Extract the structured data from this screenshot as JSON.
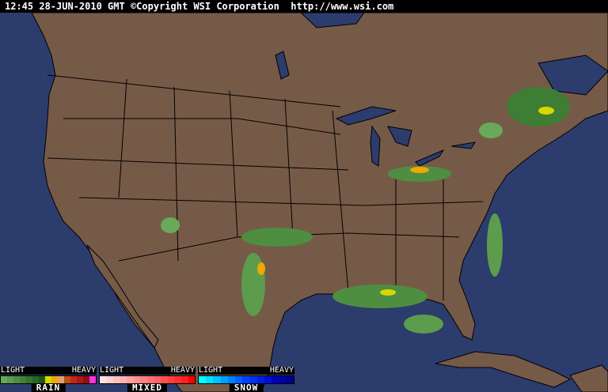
{
  "header": {
    "timestamp": "12:45 28-JUN-2010 GMT",
    "copyright": "©Copyright WSI Corporation",
    "url": "http://www.wsi.com"
  },
  "colors": {
    "ocean": "#2c3c6c",
    "land": "#765a48",
    "borders": "#000000"
  },
  "legend": [
    {
      "name": "RAIN",
      "light": "LIGHT",
      "heavy": "HEAVY",
      "colors": [
        "#6aa85a",
        "#5c9c4c",
        "#4e8e40",
        "#428236",
        "#36742c",
        "#2a6624",
        "#1e561a",
        "#d8d800",
        "#f0a800",
        "#e0a070",
        "#b85010",
        "#d02020",
        "#b01818",
        "#901010",
        "#ff30e0"
      ]
    },
    {
      "name": "MIXED",
      "light": "LIGHT",
      "heavy": "HEAVY",
      "colors": [
        "#ffe0e0",
        "#ffd0d0",
        "#ffc0c0",
        "#ffb0b0",
        "#ffa0a0",
        "#ff9090",
        "#ff8080",
        "#ff7070",
        "#ff6060",
        "#ff5050",
        "#ff4040",
        "#ff3030",
        "#ff2020",
        "#ff0000"
      ]
    },
    {
      "name": "SNOW",
      "light": "LIGHT",
      "heavy": "HEAVY",
      "colors": [
        "#00ffff",
        "#00e0ff",
        "#00c0ff",
        "#00a0ff",
        "#0080ff",
        "#0060ff",
        "#0040ff",
        "#0030f0",
        "#0020e0",
        "#0010d0",
        "#0000c0",
        "#0000a8",
        "#000090"
      ]
    }
  ]
}
